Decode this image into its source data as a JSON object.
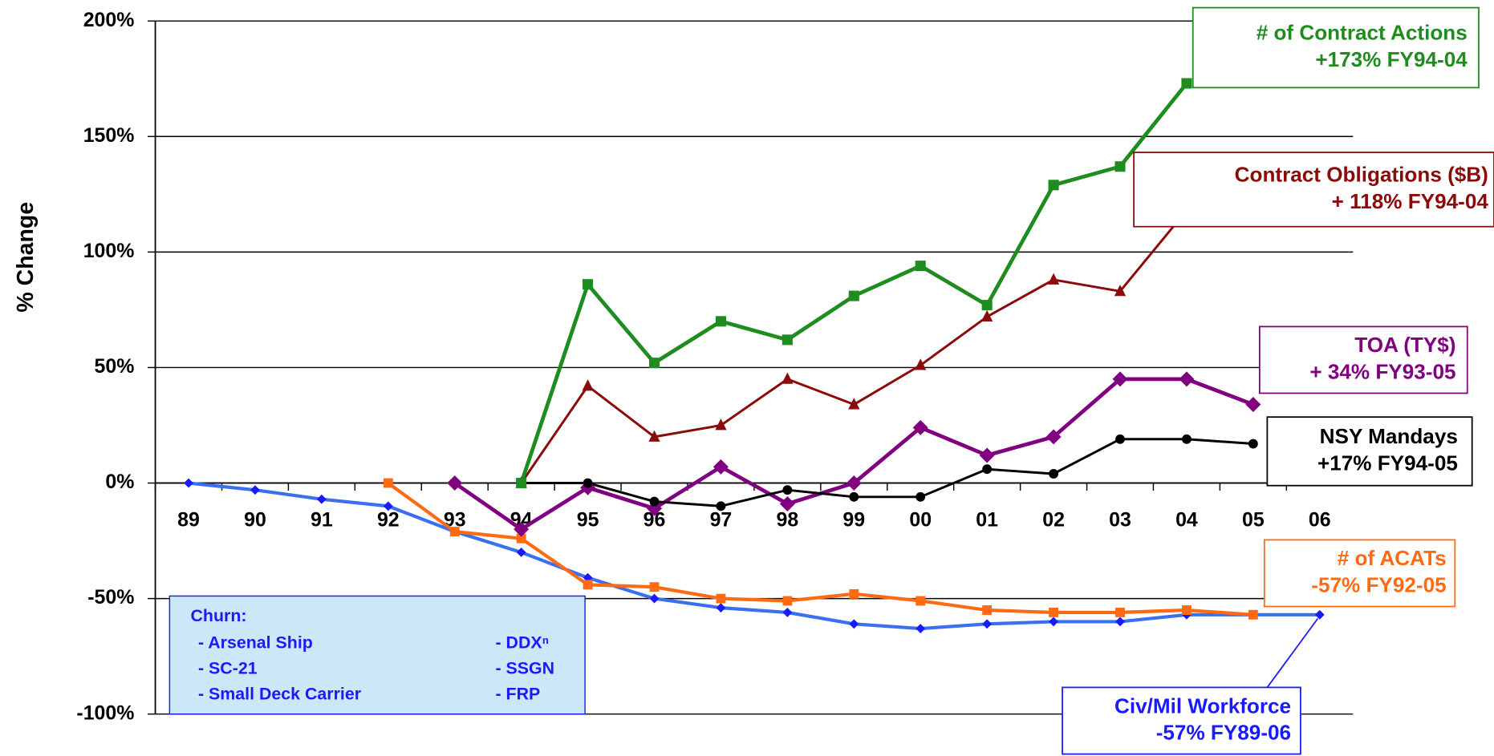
{
  "chart_data": {
    "type": "line",
    "y_label": "% Change",
    "categories": [
      "89",
      "90",
      "91",
      "92",
      "93",
      "94",
      "95",
      "96",
      "97",
      "98",
      "99",
      "00",
      "01",
      "02",
      "03",
      "04",
      "05",
      "06"
    ],
    "ylim": [
      -100,
      200
    ],
    "yticks": [
      {
        "value": -100,
        "label": "-100%"
      },
      {
        "value": -50,
        "label": "-50%"
      },
      {
        "value": 0,
        "label": "0%"
      },
      {
        "value": 50,
        "label": "50%"
      },
      {
        "value": 100,
        "label": "100%"
      },
      {
        "value": 150,
        "label": "150%"
      },
      {
        "value": 200,
        "label": "200%"
      }
    ],
    "grid": true,
    "series": [
      {
        "name": "Civ/Mil Workforce",
        "color": "#3a6ff0",
        "marker_color": "#1a1aff",
        "marker": "diamond",
        "values": [
          0,
          -3,
          -7,
          -10,
          -21,
          -30,
          -41,
          -50,
          -54,
          -56,
          -61,
          -63,
          -61,
          -60,
          -60,
          -57,
          -57,
          -57
        ]
      },
      {
        "name": "# of ACATs",
        "color": "#ff6a13",
        "marker_color": "#ff6a13",
        "marker": "square",
        "values": [
          null,
          null,
          null,
          0,
          -21,
          -24,
          -44,
          -45,
          -50,
          -51,
          -48,
          -51,
          -55,
          -56,
          -56,
          -55,
          -57,
          null
        ]
      },
      {
        "name": "TOA (TY$)",
        "color": "#800080",
        "marker_color": "#800080",
        "marker": "bigdiamond",
        "values": [
          null,
          null,
          null,
          null,
          0,
          -20,
          -2,
          -11,
          7,
          -9,
          0,
          24,
          12,
          20,
          45,
          45,
          34,
          null
        ]
      },
      {
        "name": "NSY Mandays",
        "color": "#000000",
        "marker_color": "#000000",
        "marker": "circle",
        "values": [
          null,
          null,
          null,
          null,
          null,
          0,
          0,
          -8,
          -10,
          -3,
          -6,
          -6,
          6,
          4,
          19,
          19,
          17,
          null
        ]
      },
      {
        "name": "Contract Obligations ($B)",
        "color": "#8b0a0a",
        "marker_color": "#8b0a0a",
        "marker": "triangle",
        "values": [
          null,
          null,
          null,
          null,
          null,
          0,
          42,
          20,
          25,
          45,
          34,
          51,
          72,
          88,
          83,
          118,
          null,
          null
        ]
      },
      {
        "name": "# of Contract Actions",
        "color": "#1e8c1e",
        "marker_color": "#1e8c1e",
        "marker": "square",
        "values": [
          null,
          null,
          null,
          null,
          null,
          0,
          86,
          52,
          70,
          62,
          81,
          94,
          77,
          129,
          137,
          173,
          null,
          null
        ]
      }
    ],
    "annotations": [
      {
        "series": 5,
        "lines": [
          "# of Contract Actions",
          "+173% FY94-04"
        ]
      },
      {
        "series": 4,
        "lines": [
          "Contract Obligations ($B)",
          "+ 118% FY94-04"
        ]
      },
      {
        "series": 2,
        "lines": [
          "TOA (TY$)",
          "+ 34% FY93-05"
        ]
      },
      {
        "series": 3,
        "lines": [
          "NSY Mandays",
          "+17% FY94-05"
        ]
      },
      {
        "series": 1,
        "lines": [
          "# of ACATs",
          "-57% FY92-05"
        ]
      },
      {
        "series": 0,
        "lines": [
          "Civ/Mil Workforce",
          "-57% FY89-06"
        ]
      }
    ],
    "churn": {
      "title": "Churn:",
      "left": [
        "- Arsenal Ship",
        "- SC-21",
        "- Small Deck Carrier"
      ],
      "right": [
        "- DDXⁿ",
        "- SSGN",
        "- FRP"
      ]
    }
  }
}
